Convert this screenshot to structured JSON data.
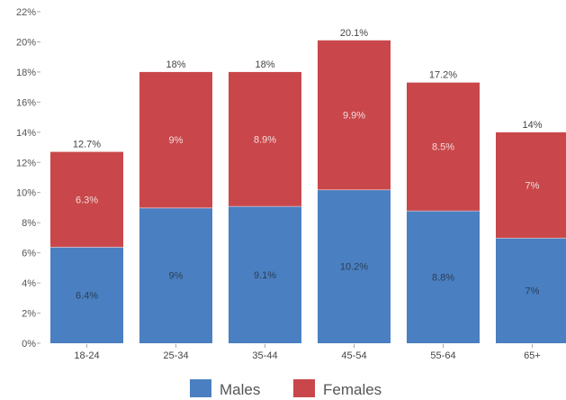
{
  "chart_data": {
    "type": "bar",
    "stacked": true,
    "categories": [
      "18-24",
      "25-34",
      "35-44",
      "45-54",
      "55-64",
      "65+"
    ],
    "series": [
      {
        "name": "Males",
        "color": "#4a7fc1",
        "values": [
          6.4,
          9,
          9.1,
          10.2,
          8.8,
          7
        ],
        "labels": [
          "6.4%",
          "9%",
          "9.1%",
          "10.2%",
          "8.8%",
          "7%"
        ],
        "label_color": "#2b3f57"
      },
      {
        "name": "Females",
        "color": "#c9474a",
        "values": [
          6.3,
          9,
          8.9,
          9.9,
          8.5,
          7
        ],
        "labels": [
          "6.3%",
          "9%",
          "8.9%",
          "9.9%",
          "8.5%",
          "7%"
        ],
        "label_color": "#f3dcdc"
      }
    ],
    "totals": [
      "12.7%",
      "18%",
      "18%",
      "20.1%",
      "17.2%",
      "14%"
    ],
    "y_ticks": [
      "0%",
      "2%",
      "4%",
      "6%",
      "8%",
      "10%",
      "12%",
      "14%",
      "16%",
      "18%",
      "20%",
      "22%"
    ],
    "ylim": [
      0,
      22
    ],
    "title": "",
    "xlabel": "",
    "ylabel": "",
    "grid": false,
    "legend": "bottom"
  }
}
